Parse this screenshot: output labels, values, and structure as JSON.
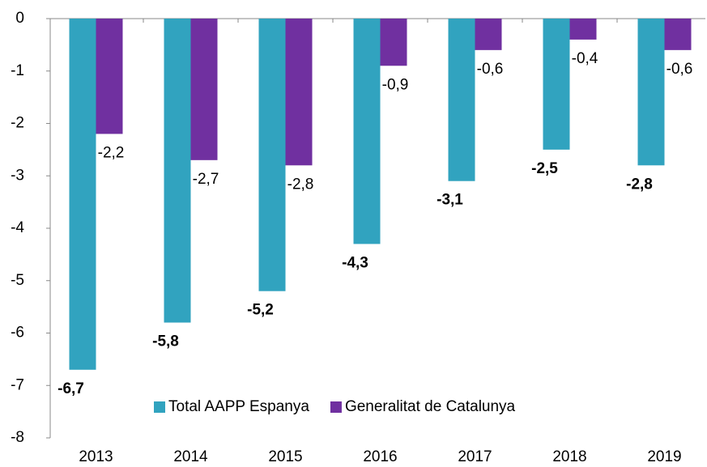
{
  "chart_data": {
    "type": "bar",
    "categories": [
      "2013",
      "2014",
      "2015",
      "2016",
      "2017",
      "2018",
      "2019"
    ],
    "series": [
      {
        "name": "Total AAPP Espanya",
        "color": "#31a3bf",
        "label_color": "#2a9a9a",
        "values": [
          -6.7,
          -5.8,
          -5.2,
          -4.3,
          -3.1,
          -2.5,
          -2.8
        ],
        "value_labels": [
          "-6,7",
          "-5,8",
          "-5,2",
          "-4,3",
          "-3,1",
          "-2,5",
          "-2,8"
        ]
      },
      {
        "name": "Generalitat de Catalunya",
        "color": "#7030a0",
        "label_color": "#000000",
        "values": [
          -2.2,
          -2.7,
          -2.8,
          -0.9,
          -0.6,
          -0.4,
          -0.6
        ],
        "value_labels": [
          "-2,2",
          "-2,7",
          "-2,8",
          "-0,9",
          "-0,6",
          "-0,4",
          "-0,6"
        ]
      }
    ],
    "ylim": [
      -8,
      0
    ],
    "yticks": [
      0,
      -1,
      -2,
      -3,
      -4,
      -5,
      -6,
      -7,
      -8
    ],
    "grid": false,
    "legend": "lower center"
  }
}
